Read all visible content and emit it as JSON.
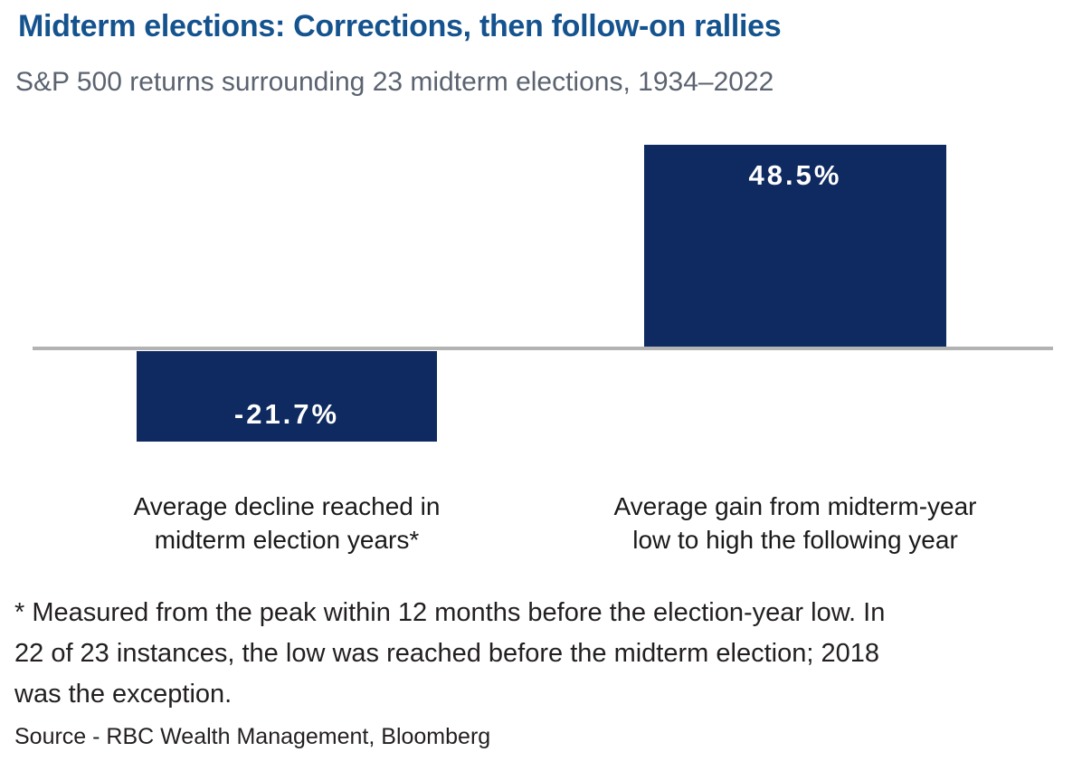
{
  "page": {
    "title": "Midterm elections: Corrections, then follow-on rallies",
    "subtitle": "S&P 500 returns surrounding 23 midterm elections, 1934–2022"
  },
  "chart_data": {
    "type": "bar",
    "title": "Midterm elections: Corrections, then follow-on rallies",
    "subtitle": "S&P 500 returns surrounding 23 midterm elections, 1934–2022",
    "categories": [
      "Average decline reached in midterm election years*",
      "Average gain from midterm-year low to high the following year"
    ],
    "values": [
      -21.7,
      48.5
    ],
    "data_labels": [
      "-21.7%",
      "48.5%"
    ],
    "xlabel": "",
    "ylabel": "",
    "ylim": [
      -25,
      52
    ],
    "baseline": 0,
    "grid": false,
    "legend": false,
    "axis_ticks_visible": false
  },
  "xaxis_labels": {
    "left": {
      "line1": "Average decline reached in",
      "line2": "midterm election years*"
    },
    "right": {
      "line1": "Average gain from midterm-year",
      "line2": "low to high the following year"
    }
  },
  "footnote": {
    "line1": "* Measured from the peak within 12 months before the election-year low. In",
    "line2": "22 of 23 instances, the low was reached before the midterm election; 2018",
    "line3": "was the exception."
  },
  "source": "Source - RBC Wealth Management, Bloomberg",
  "colors": {
    "title_blue": "#15538f",
    "subtitle_gray": "#5b6370",
    "bar_navy": "#0e2a60",
    "axis_gray": "#b3b3b3",
    "text_dark": "#231f20",
    "value_label_white": "#ffffff"
  }
}
